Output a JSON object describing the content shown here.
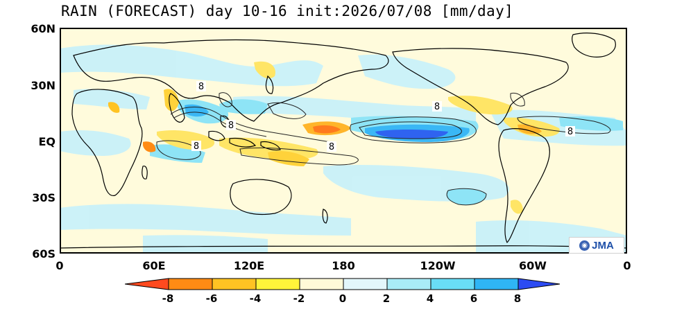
{
  "title": "RAIN (FORECAST) day 10-16 init:2026/07/08 [mm/day]",
  "map": {
    "lat_labels": [
      "60N",
      "30N",
      "EQ",
      "30S",
      "60S"
    ],
    "lon_labels": [
      "0",
      "60E",
      "120E",
      "180",
      "120W",
      "60W",
      "0"
    ],
    "contour_label": "8",
    "logo_text": "JMA"
  },
  "colorbar": {
    "tick_labels": [
      "-8",
      "-6",
      "-4",
      "-2",
      "0",
      "2",
      "4",
      "6",
      "8"
    ],
    "colors": [
      "#ff4a1f",
      "#ff8b14",
      "#ffc323",
      "#fff43a",
      "#fffad8",
      "#e3f7fb",
      "#a9ecf7",
      "#69ddf6",
      "#2fb5f5",
      "#2c4bf2"
    ]
  },
  "colors": {
    "ocean_background": "#fffbdc",
    "coast_line": "#000000"
  }
}
